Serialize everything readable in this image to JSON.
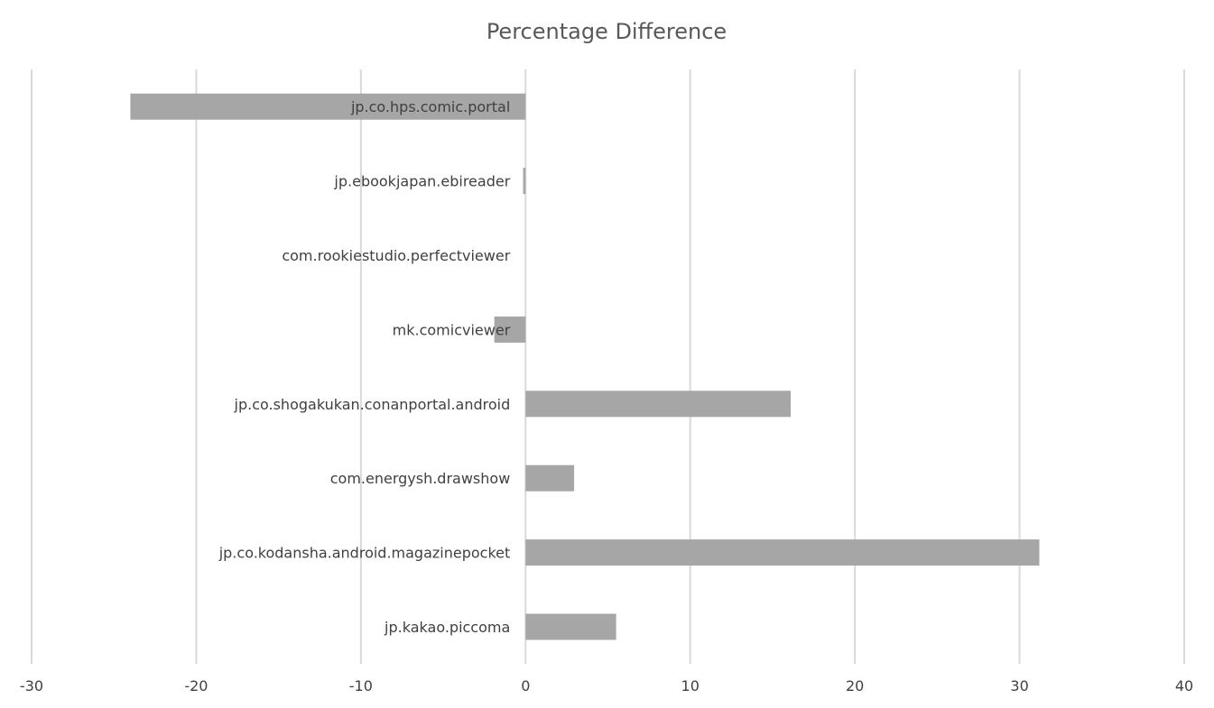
{
  "chart_data": {
    "type": "bar",
    "orientation": "horizontal",
    "title": "Percentage Difference",
    "xlabel": "",
    "ylabel": "",
    "categories": [
      "jp.co.hps.comic.portal",
      "jp.ebookjapan.ebireader",
      "com.rookiestudio.perfectviewer",
      "mk.comicviewer",
      "jp.co.shogakukan.conanportal.android",
      "com.energysh.drawshow",
      "jp.co.kodansha.android.magazinepocket",
      "jp.kakao.piccoma"
    ],
    "values": [
      -24.0,
      -0.15,
      0.0,
      -1.9,
      16.1,
      2.95,
      31.2,
      5.5
    ],
    "xlim": [
      -30,
      40
    ],
    "xticks": [
      "-30",
      "-20",
      "-10",
      "0",
      "10",
      "20",
      "30",
      "40"
    ],
    "grid": true,
    "legend": "none",
    "bar_color": "#a6a6a6",
    "grid_color": "#d9d9d9",
    "text_color": "#404040",
    "title_color": "#595959"
  }
}
